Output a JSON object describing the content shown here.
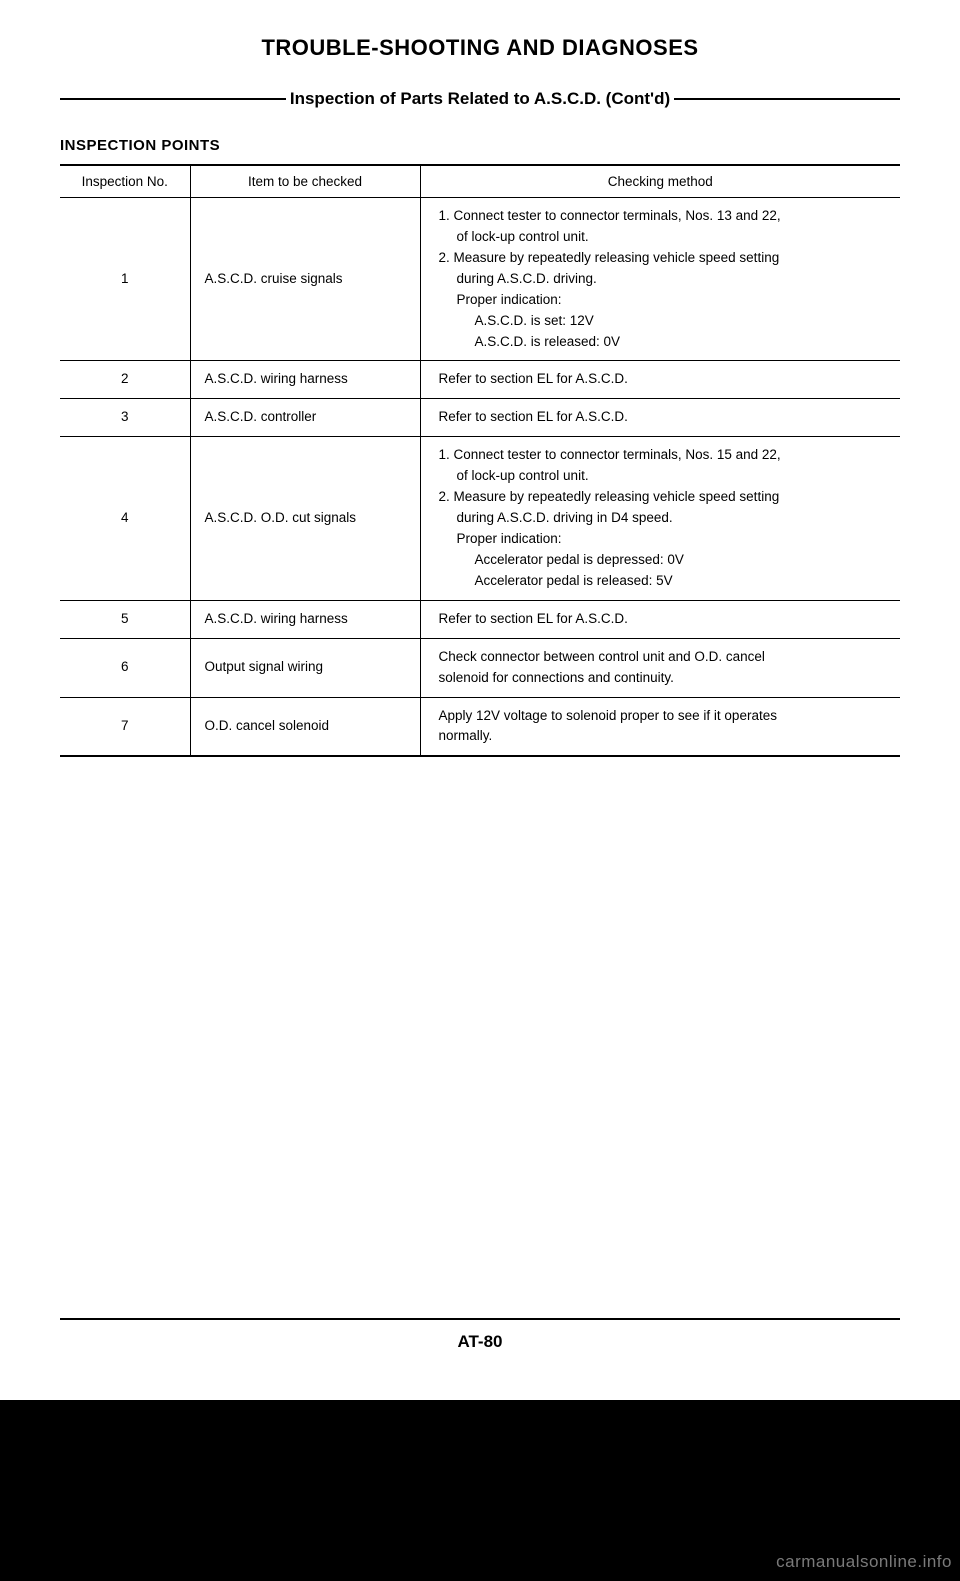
{
  "title": "TROUBLE-SHOOTING AND DIAGNOSES",
  "subtitle": "Inspection of Parts Related to A.S.C.D. (Cont'd)",
  "section_label": "INSPECTION POINTS",
  "table": {
    "headers": {
      "no": "Inspection No.",
      "item": "Item to be checked",
      "method": "Checking method"
    },
    "rows": [
      {
        "no": "1",
        "item": "A.S.C.D. cruise signals",
        "method": [
          {
            "t": "1. Connect tester to connector terminals, Nos. 13 and 22,",
            "i": 0
          },
          {
            "t": "of lock-up control unit.",
            "i": 1
          },
          {
            "t": "2. Measure by repeatedly releasing vehicle speed setting",
            "i": 0
          },
          {
            "t": "during A.S.C.D. driving.",
            "i": 1
          },
          {
            "t": "Proper indication:",
            "i": 1
          },
          {
            "t": "A.S.C.D. is set:  12V",
            "i": 2
          },
          {
            "t": "A.S.C.D. is released:  0V",
            "i": 2
          }
        ]
      },
      {
        "no": "2",
        "item": "A.S.C.D. wiring harness",
        "method": [
          {
            "t": "Refer to section EL for A.S.C.D.",
            "i": 0
          }
        ]
      },
      {
        "no": "3",
        "item": "A.S.C.D. controller",
        "method": [
          {
            "t": "Refer to section EL for A.S.C.D.",
            "i": 0
          }
        ]
      },
      {
        "no": "4",
        "item": "A.S.C.D. O.D. cut signals",
        "method": [
          {
            "t": "1. Connect tester to connector terminals, Nos. 15 and 22,",
            "i": 0
          },
          {
            "t": "of lock-up control unit.",
            "i": 1
          },
          {
            "t": "2. Measure by repeatedly releasing vehicle speed setting",
            "i": 0
          },
          {
            "t": "during A.S.C.D. driving in D4 speed.",
            "i": 1
          },
          {
            "t": "Proper indication:",
            "i": 1
          },
          {
            "t": "Accelerator pedal is depressed:  0V",
            "i": 2
          },
          {
            "t": "Accelerator pedal is released:  5V",
            "i": 2
          }
        ]
      },
      {
        "no": "5",
        "item": "A.S.C.D. wiring harness",
        "method": [
          {
            "t": "Refer to section EL for A.S.C.D.",
            "i": 0
          }
        ]
      },
      {
        "no": "6",
        "item": "Output signal wiring",
        "method": [
          {
            "t": "Check connector between control unit and O.D. cancel",
            "i": 0
          },
          {
            "t": "solenoid for connections and continuity.",
            "i": 0
          }
        ]
      },
      {
        "no": "7",
        "item": "O.D. cancel solenoid",
        "method": [
          {
            "t": "Apply 12V voltage to solenoid proper to see if it operates",
            "i": 0
          },
          {
            "t": "normally.",
            "i": 0
          }
        ]
      }
    ]
  },
  "page_number": "AT-80",
  "watermark": "carmanualsonline.info"
}
